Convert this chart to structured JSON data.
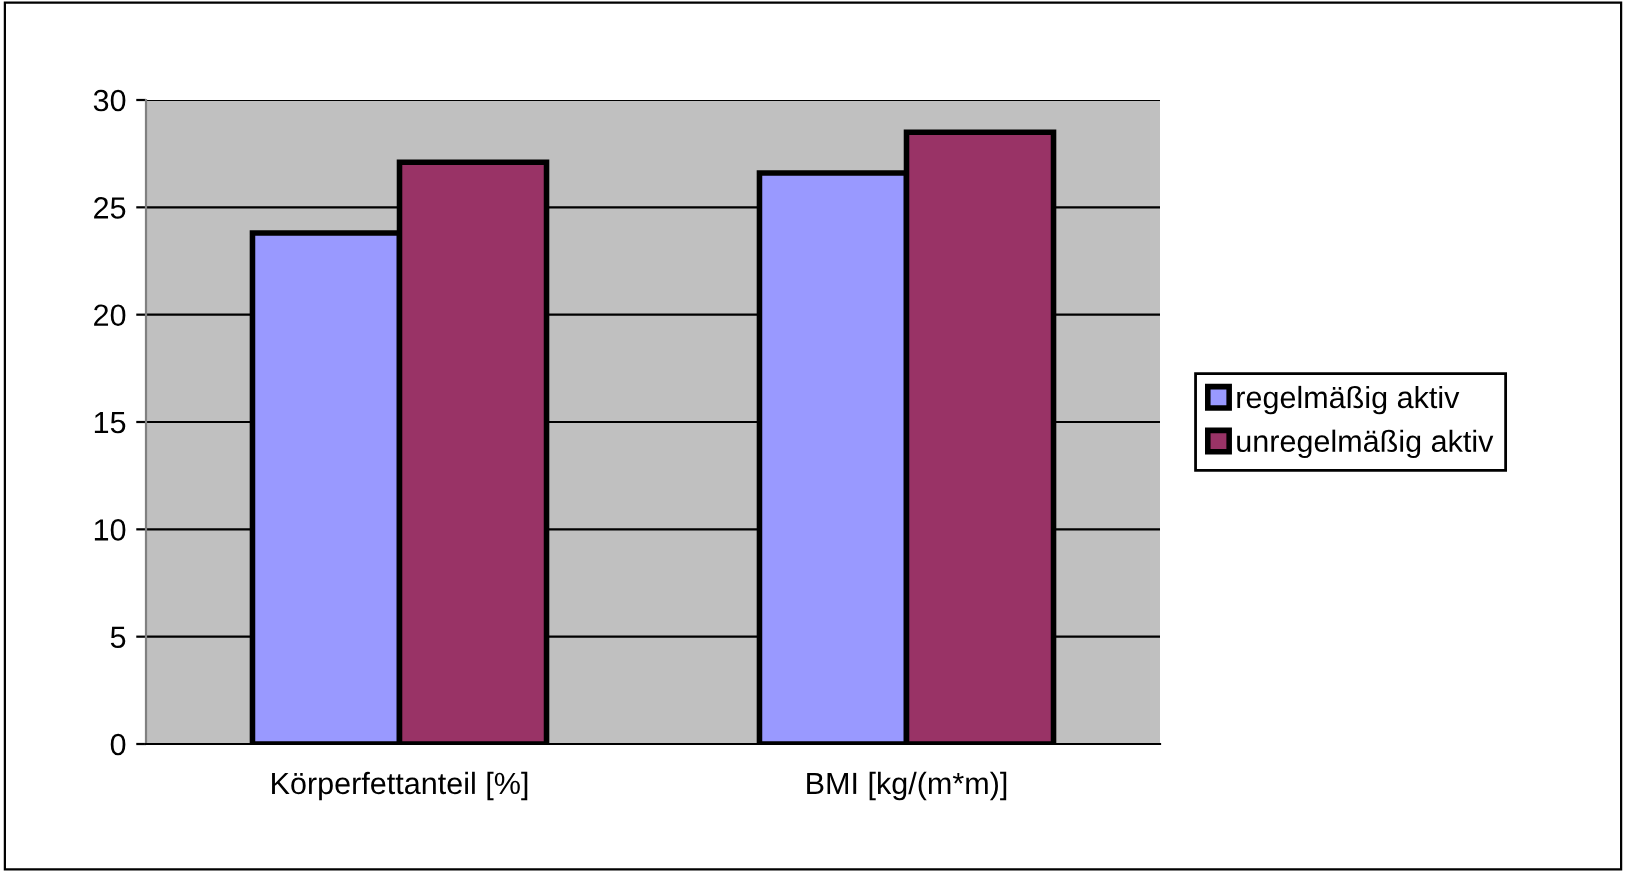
{
  "chart_data": {
    "type": "bar",
    "categories": [
      "Körperfettanteil [%]",
      "BMI [kg/(m*m)]"
    ],
    "series": [
      {
        "name": "regelmäßig aktiv",
        "color": "#9999ff",
        "values": [
          23.8,
          26.6
        ]
      },
      {
        "name": "unregelmäßig aktiv",
        "color": "#993366",
        "values": [
          27.1,
          28.5
        ]
      }
    ],
    "ylim": [
      0,
      30
    ],
    "yticks": [
      0,
      5,
      10,
      15,
      20,
      25,
      30
    ],
    "grid": "y",
    "legend": "right"
  }
}
